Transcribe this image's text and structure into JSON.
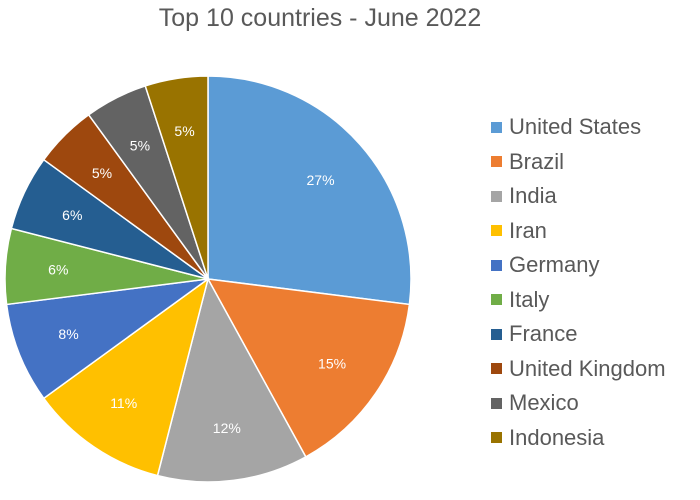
{
  "chart_data": {
    "type": "pie",
    "title": "Top 10 countries - June 2022",
    "categories": [
      "United States",
      "Brazil",
      "India",
      "Iran",
      "Germany",
      "Italy",
      "France",
      "United Kingdom",
      "Mexico",
      "Indonesia"
    ],
    "values": [
      27,
      15,
      12,
      11,
      8,
      6,
      6,
      5,
      5,
      5
    ],
    "labels": [
      "27%",
      "15%",
      "12%",
      "11%",
      "8%",
      "6%",
      "6%",
      "5%",
      "5%",
      "5%"
    ],
    "colors": [
      "#5b9bd5",
      "#ed7d31",
      "#a5a5a5",
      "#ffc000",
      "#4472c4",
      "#70ad47",
      "#255e91",
      "#9e480e",
      "#636363",
      "#997300"
    ],
    "legend_position": "right"
  }
}
